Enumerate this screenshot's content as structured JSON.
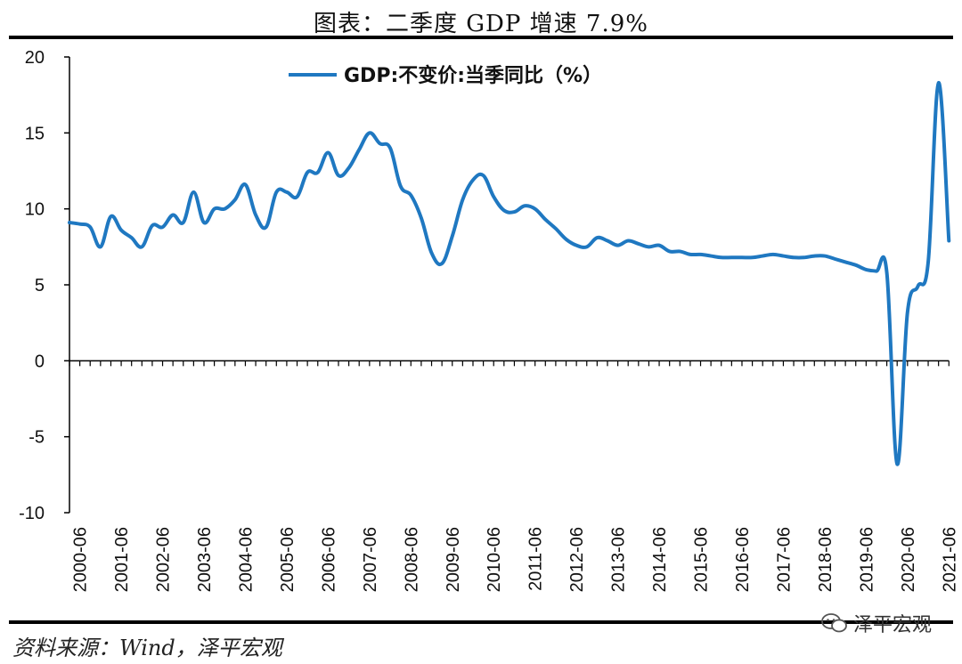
{
  "title": "图表：二季度 GDP 增速 7.9%",
  "source": "资料来源：Wind，泽平宏观",
  "watermark": "泽平宏观",
  "colors": {
    "line": "#1f78c1",
    "axis": "#000000"
  },
  "chart_data": {
    "type": "line",
    "legend": {
      "position": "top-center"
    },
    "ylim": [
      -10,
      20
    ],
    "yticks": [
      -10,
      -5,
      0,
      5,
      10,
      15,
      20
    ],
    "xlabels": [
      "2000-06",
      "2001-06",
      "2002-06",
      "2003-06",
      "2004-06",
      "2005-06",
      "2006-06",
      "2007-06",
      "2008-06",
      "2009-06",
      "2010-06",
      "2011-06",
      "2012-06",
      "2013-06",
      "2014-06",
      "2015-06",
      "2016-06",
      "2017-06",
      "2018-06",
      "2019-06",
      "2020-06",
      "2021-06"
    ],
    "series": [
      {
        "name": "GDP:不变价:当季同比（%）",
        "x": [
          "2000-03",
          "2000-06",
          "2000-09",
          "2000-12",
          "2001-03",
          "2001-06",
          "2001-09",
          "2001-12",
          "2002-03",
          "2002-06",
          "2002-09",
          "2002-12",
          "2003-03",
          "2003-06",
          "2003-09",
          "2003-12",
          "2004-03",
          "2004-06",
          "2004-09",
          "2004-12",
          "2005-03",
          "2005-06",
          "2005-09",
          "2005-12",
          "2006-03",
          "2006-06",
          "2006-09",
          "2006-12",
          "2007-03",
          "2007-06",
          "2007-09",
          "2007-12",
          "2008-03",
          "2008-06",
          "2008-09",
          "2008-12",
          "2009-03",
          "2009-06",
          "2009-09",
          "2009-12",
          "2010-03",
          "2010-06",
          "2010-09",
          "2010-12",
          "2011-03",
          "2011-06",
          "2011-09",
          "2011-12",
          "2012-03",
          "2012-06",
          "2012-09",
          "2012-12",
          "2013-03",
          "2013-06",
          "2013-09",
          "2013-12",
          "2014-03",
          "2014-06",
          "2014-09",
          "2014-12",
          "2015-03",
          "2015-06",
          "2015-09",
          "2015-12",
          "2016-03",
          "2016-06",
          "2016-09",
          "2016-12",
          "2017-03",
          "2017-06",
          "2017-09",
          "2017-12",
          "2018-03",
          "2018-06",
          "2018-09",
          "2018-12",
          "2019-03",
          "2019-06",
          "2019-09",
          "2019-12",
          "2020-03",
          "2020-06",
          "2020-09",
          "2020-12",
          "2021-03",
          "2021-06"
        ],
        "values": [
          9.1,
          9.0,
          8.8,
          7.5,
          9.5,
          8.6,
          8.1,
          7.5,
          8.9,
          8.8,
          9.6,
          9.1,
          11.1,
          9.1,
          10.0,
          10.0,
          10.6,
          11.6,
          9.6,
          8.8,
          11.1,
          11.1,
          10.8,
          12.4,
          12.4,
          13.7,
          12.2,
          12.7,
          13.9,
          15.0,
          14.3,
          14.0,
          11.5,
          10.9,
          9.4,
          7.1,
          6.4,
          8.2,
          10.6,
          11.9,
          12.2,
          10.8,
          9.9,
          9.8,
          10.2,
          10.0,
          9.3,
          8.7,
          8.0,
          7.6,
          7.5,
          8.1,
          7.9,
          7.6,
          7.9,
          7.7,
          7.5,
          7.6,
          7.2,
          7.2,
          7.0,
          7.0,
          6.9,
          6.8,
          6.8,
          6.8,
          6.8,
          6.9,
          7.0,
          6.9,
          6.8,
          6.8,
          6.9,
          6.9,
          6.7,
          6.5,
          6.3,
          6.0,
          5.9,
          5.8,
          -6.8,
          3.2,
          4.9,
          6.5,
          18.3,
          7.9
        ]
      }
    ]
  }
}
